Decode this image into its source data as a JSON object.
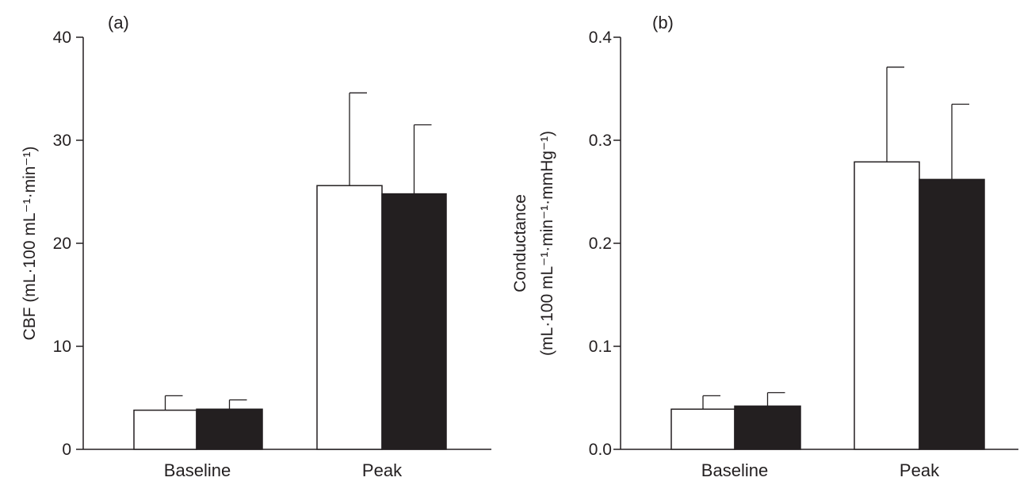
{
  "chart_data": [
    {
      "type": "bar",
      "panel_label": "(a)",
      "categories": [
        "Baseline",
        "Peak"
      ],
      "ylabel": "CBF (mL·100 mL⁻¹·min⁻¹)",
      "ylim": [
        0,
        40
      ],
      "yticks": [
        0,
        10,
        20,
        30,
        40
      ],
      "ytick_labels": [
        "0",
        "10",
        "20",
        "30",
        "40"
      ],
      "grid": false,
      "series": [
        {
          "values": [
            3.8,
            25.6
          ],
          "errors": [
            1.4,
            9.0
          ],
          "color": "#ffffff"
        },
        {
          "values": [
            3.9,
            24.8
          ],
          "errors": [
            0.9,
            6.7
          ],
          "color": "#231f20"
        }
      ]
    },
    {
      "type": "bar",
      "panel_label": "(b)",
      "categories": [
        "Baseline",
        "Peak"
      ],
      "ylabel": "Conductance",
      "ylabel_line2": "(mL·100 mL⁻¹·min⁻¹·mmHg⁻¹)",
      "ylim": [
        0,
        0.4
      ],
      "yticks": [
        0,
        0.1,
        0.2,
        0.3,
        0.4
      ],
      "ytick_labels": [
        "0.0",
        "0.1",
        "0.2",
        "0.3",
        "0.4"
      ],
      "grid": false,
      "series": [
        {
          "values": [
            0.039,
            0.279
          ],
          "errors": [
            0.013,
            0.092
          ],
          "color": "#ffffff"
        },
        {
          "values": [
            0.042,
            0.262
          ],
          "errors": [
            0.013,
            0.073
          ],
          "color": "#231f20"
        }
      ]
    }
  ]
}
